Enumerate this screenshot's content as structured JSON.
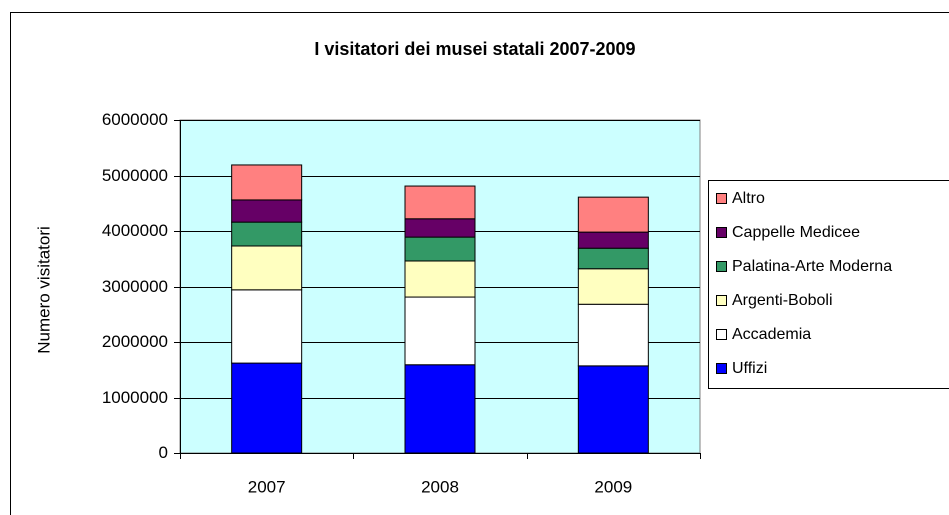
{
  "chart_data": {
    "type": "bar",
    "stacked": true,
    "title": "I visitatori dei musei statali 2007-2009",
    "y_label": "Numero visitatori",
    "categories": [
      "2007",
      "2008",
      "2009"
    ],
    "series": [
      {
        "name": "Uffizi",
        "color": "#0000ff",
        "values": [
          1620000,
          1590000,
          1570000
        ]
      },
      {
        "name": "Accademia",
        "color": "#ffffff",
        "values": [
          1320000,
          1220000,
          1110000
        ]
      },
      {
        "name": "Argenti-Boboli",
        "color": "#ffffc0",
        "values": [
          790000,
          650000,
          640000
        ]
      },
      {
        "name": "Palatina-Arte Moderna",
        "color": "#339966",
        "values": [
          430000,
          430000,
          370000
        ]
      },
      {
        "name": "Cappelle Medicee",
        "color": "#660066",
        "values": [
          400000,
          330000,
          290000
        ]
      },
      {
        "name": "Altro",
        "color": "#ff8080",
        "values": [
          630000,
          590000,
          630000
        ]
      }
    ],
    "ylim": [
      0,
      6000000
    ],
    "yticks": [
      0,
      1000000,
      2000000,
      3000000,
      4000000,
      5000000,
      6000000
    ],
    "grid": true,
    "legend": "right",
    "plot_background": "#ccffff"
  }
}
